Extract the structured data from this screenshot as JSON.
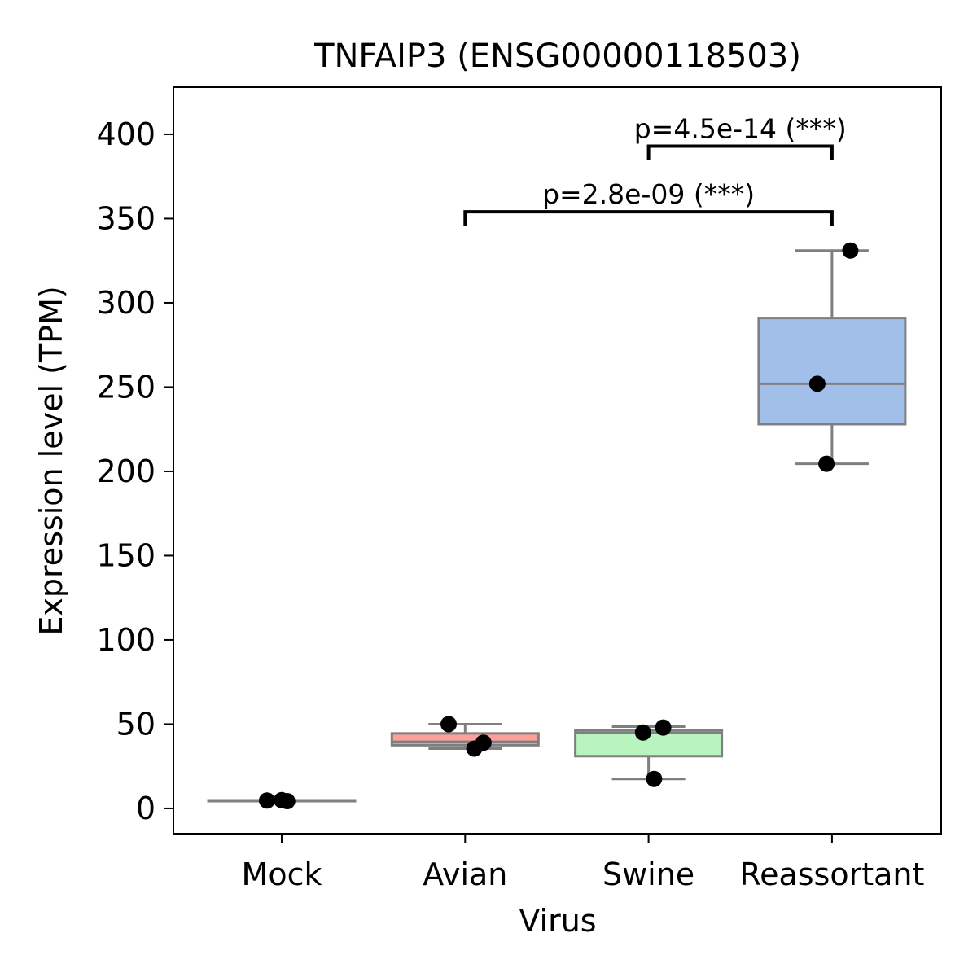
{
  "chart_data": {
    "type": "box",
    "title": "TNFAIP3 (ENSG00000118503)",
    "xlabel": "Virus",
    "ylabel": "Expression level (TPM)",
    "ylim": [
      -15,
      428
    ],
    "yticks": [
      0,
      50,
      100,
      150,
      200,
      250,
      300,
      350,
      400
    ],
    "categories": [
      "Mock",
      "Avian",
      "Swine",
      "Reassortant"
    ],
    "colors": [
      "#ff9f9b",
      "#ff9f9b",
      "#b9f3be",
      "#a1bfe8"
    ],
    "box_edge_color": "#7f7f7f",
    "point_color": "#000000",
    "boxes": [
      {
        "name": "Mock",
        "whisker_low": 4.5,
        "q1": 4.5,
        "median": 4.5,
        "q3": 4.8,
        "whisker_high": 4.8
      },
      {
        "name": "Avian",
        "whisker_low": 35.5,
        "q1": 37.5,
        "median": 39.5,
        "q3": 44.5,
        "whisker_high": 50
      },
      {
        "name": "Swine",
        "whisker_low": 17.5,
        "q1": 31,
        "median": 45,
        "q3": 46.5,
        "whisker_high": 48.5
      },
      {
        "name": "Reassortant",
        "whisker_low": 204.5,
        "q1": 228,
        "median": 252,
        "q3": 291,
        "whisker_high": 331
      }
    ],
    "points": [
      {
        "category": "Mock",
        "values": [
          4.7,
          4.9,
          4.3
        ],
        "jitter": [
          -0.08,
          0.0,
          0.03
        ]
      },
      {
        "category": "Avian",
        "values": [
          50.0,
          35.5,
          39.0
        ],
        "jitter": [
          -0.09,
          0.05,
          0.1
        ]
      },
      {
        "category": "Swine",
        "values": [
          45.0,
          48.0,
          17.5
        ],
        "jitter": [
          -0.03,
          0.08,
          0.03
        ]
      },
      {
        "category": "Reassortant",
        "values": [
          331.0,
          252.0,
          204.5
        ],
        "jitter": [
          0.1,
          -0.08,
          -0.03
        ]
      }
    ],
    "annotations": [
      {
        "from": "Avian",
        "to": "Reassortant",
        "y": 354,
        "label": "p=2.8e-09 (***)"
      },
      {
        "from": "Swine",
        "to": "Reassortant",
        "y": 393,
        "label": "p=4.5e-14 (***)"
      }
    ],
    "grid": false,
    "legend": "none"
  }
}
